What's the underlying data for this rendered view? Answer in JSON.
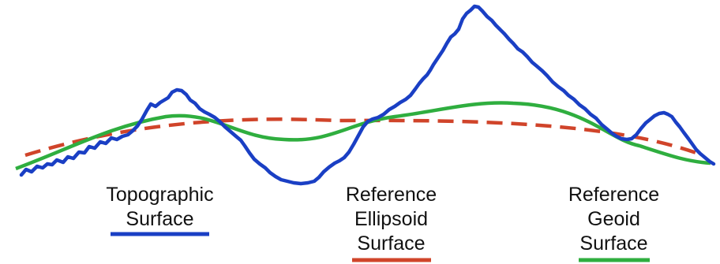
{
  "legend": {
    "topographic": {
      "line1": "Topographic",
      "line2": "Surface",
      "color": "#1a3fc4",
      "style": "solid"
    },
    "ellipsoid": {
      "line1": "Reference",
      "line2": "Ellipsoid",
      "line3": "Surface",
      "color": "#d0442a",
      "style": "dashed"
    },
    "geoid": {
      "line1": "Reference",
      "line2": "Geoid",
      "line3": "Surface",
      "color": "#2fae3f",
      "style": "solid"
    }
  }
}
